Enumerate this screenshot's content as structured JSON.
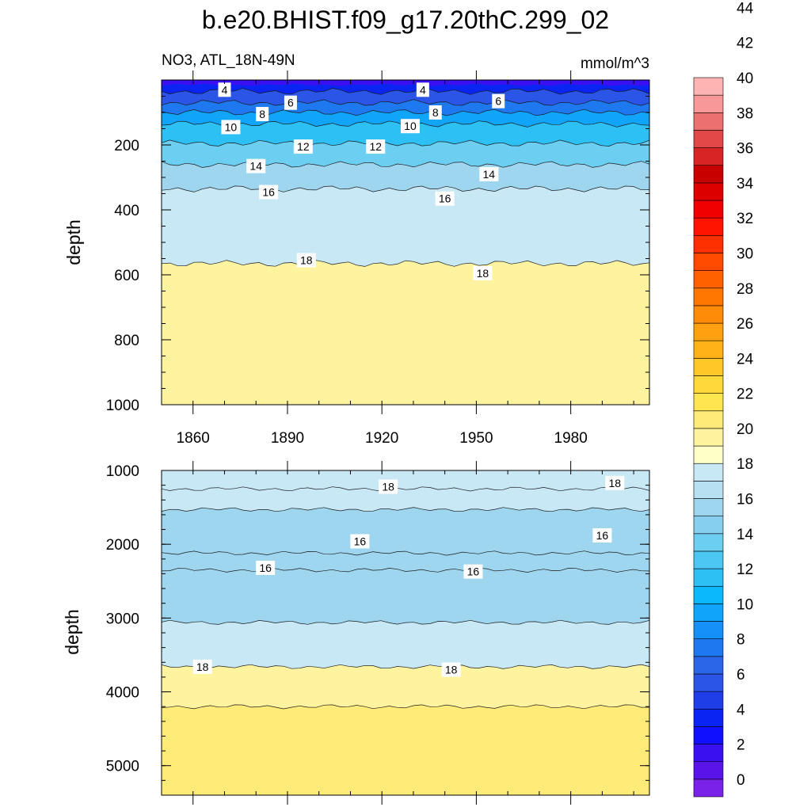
{
  "title": "b.e20.BHIST.f09_g17.20thC.299_02",
  "chart_data": {
    "type": "contour",
    "variable": "NO3, ATL_18N-49N",
    "units": "mmol/m^3",
    "x_range": [
      1850,
      2005
    ],
    "x_ticks": [
      1860,
      1890,
      1920,
      1950,
      1980
    ],
    "colorbar": {
      "levels": [
        0,
        2,
        4,
        6,
        8,
        10,
        12,
        14,
        16,
        18,
        20,
        22,
        24,
        26,
        28,
        30,
        32,
        34,
        36,
        38,
        40,
        42,
        44
      ],
      "colors": [
        "#7b22e8",
        "#5a14e8",
        "#3a10f0",
        "#1010ff",
        "#0a24f4",
        "#1f3ee8",
        "#2a55e6",
        "#2c66e8",
        "#1e78f0",
        "#1590f8",
        "#10a5fb",
        "#0bb8fb",
        "#2cc0f5",
        "#4cc7f3",
        "#6ccef1",
        "#86cfee",
        "#9ed6ef",
        "#b8e0f3",
        "#c8e8f6",
        "#ffffc8",
        "#fff3a0",
        "#ffec78",
        "#ffe550",
        "#ffd83a",
        "#ffc828",
        "#ffb218",
        "#ffa010",
        "#ff8c08",
        "#ff7600",
        "#ff6000",
        "#ff4a00",
        "#ff3000",
        "#ff1400",
        "#f00000",
        "#dc0000",
        "#c80000",
        "#d82424",
        "#e24848",
        "#ec7070",
        "#f89898",
        "#ffb4b4"
      ],
      "tick_labels": [
        "0",
        "2",
        "4",
        "6",
        "8",
        "10",
        "12",
        "14",
        "16",
        "18",
        "20",
        "22",
        "24",
        "26",
        "28",
        "30",
        "32",
        "34",
        "36",
        "38",
        "40",
        "42",
        "44"
      ]
    },
    "panels": [
      {
        "name": "upper",
        "ylabel": "depth",
        "y_range": [
          0,
          1000
        ],
        "y_ticks": [
          200,
          400,
          600,
          800,
          1000
        ],
        "contours": [
          {
            "level": 4,
            "depth": 35
          },
          {
            "level": 6,
            "depth": 70
          },
          {
            "level": 8,
            "depth": 100
          },
          {
            "level": 10,
            "depth": 135
          },
          {
            "level": 12,
            "depth": 195
          },
          {
            "level": 14,
            "depth": 260
          },
          {
            "level": 16,
            "depth": 335
          },
          {
            "level": 18,
            "depth": 565
          }
        ],
        "labels": [
          {
            "text": "4",
            "year": 1870,
            "depth": 30
          },
          {
            "text": "4",
            "year": 1933,
            "depth": 30
          },
          {
            "text": "6",
            "year": 1891,
            "depth": 70
          },
          {
            "text": "6",
            "year": 1957,
            "depth": 65
          },
          {
            "text": "8",
            "year": 1882,
            "depth": 105
          },
          {
            "text": "8",
            "year": 1937,
            "depth": 100
          },
          {
            "text": "10",
            "year": 1872,
            "depth": 145
          },
          {
            "text": "10",
            "year": 1929,
            "depth": 142
          },
          {
            "text": "12",
            "year": 1895,
            "depth": 205
          },
          {
            "text": "12",
            "year": 1918,
            "depth": 205
          },
          {
            "text": "14",
            "year": 1880,
            "depth": 265
          },
          {
            "text": "14",
            "year": 1954,
            "depth": 290
          },
          {
            "text": "16",
            "year": 1884,
            "depth": 345
          },
          {
            "text": "16",
            "year": 1940,
            "depth": 365
          },
          {
            "text": "18",
            "year": 1896,
            "depth": 555
          },
          {
            "text": "18",
            "year": 1952,
            "depth": 595
          }
        ]
      },
      {
        "name": "lower",
        "ylabel": "depth",
        "y_range": [
          1000,
          5400
        ],
        "y_ticks": [
          1000,
          2000,
          3000,
          4000,
          5000
        ],
        "contours": [
          {
            "level": 18,
            "depth": 1250
          },
          {
            "level": 18,
            "depth": 1530
          },
          {
            "level": 16,
            "depth": 2120
          },
          {
            "level": 16,
            "depth": 2350
          },
          {
            "level": 16,
            "depth": 3060
          },
          {
            "level": 18,
            "depth": 3660
          },
          {
            "level": 20,
            "depth": 4200
          }
        ],
        "labels": [
          {
            "text": "18",
            "year": 1922,
            "depth": 1220
          },
          {
            "text": "18",
            "year": 1994,
            "depth": 1170
          },
          {
            "text": "16",
            "year": 1913,
            "depth": 1960
          },
          {
            "text": "16",
            "year": 1990,
            "depth": 1880
          },
          {
            "text": "16",
            "year": 1883,
            "depth": 2320
          },
          {
            "text": "16",
            "year": 1949,
            "depth": 2370
          },
          {
            "text": "18",
            "year": 1863,
            "depth": 3660
          },
          {
            "text": "18",
            "year": 1942,
            "depth": 3700
          }
        ]
      }
    ]
  }
}
